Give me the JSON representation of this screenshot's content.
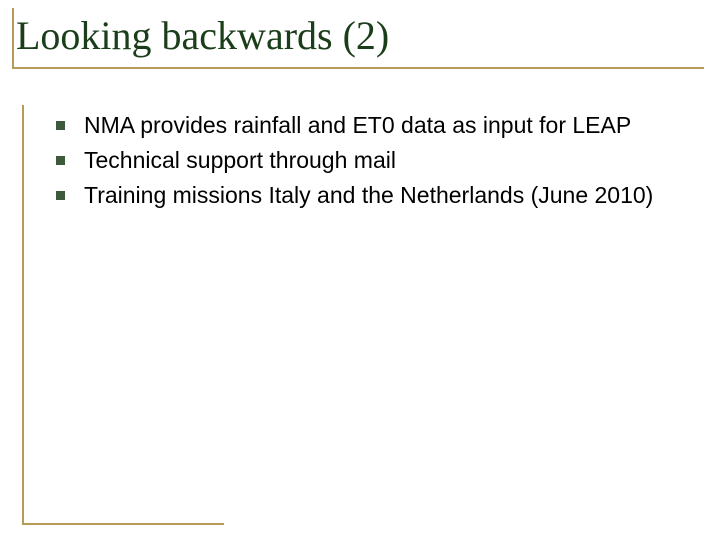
{
  "slide": {
    "title": "Looking backwards (2)",
    "title_color": "#1a3d1a",
    "title_fontfamily": "Times New Roman",
    "title_fontsize": 40,
    "accent_line_color": "#b89a5a",
    "bullet_marker_color": "#3d5a3d",
    "bullet_fontsize": 23,
    "bullet_text_color": "#000000",
    "background_color": "#ffffff",
    "bullets": [
      "NMA provides rainfall and ET0 data as input for LEAP",
      "Technical support through mail",
      "Training missions Italy and the Netherlands (June 2010)"
    ]
  }
}
